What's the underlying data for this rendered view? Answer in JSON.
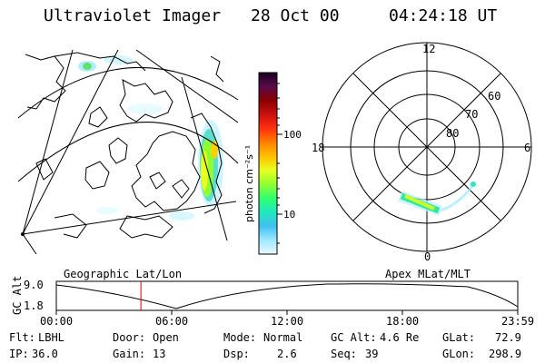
{
  "header": {
    "instrument": "Ultraviolet Imager",
    "date": "28 Oct 00",
    "time": "04:24:18 UT"
  },
  "colorbar": {
    "unit_label": "photon cm⁻²s⁻¹",
    "ticks": [
      "100",
      "10"
    ],
    "colors": [
      "#1a0020",
      "#5a0a4a",
      "#8a0000",
      "#cc1010",
      "#ff3010",
      "#ff8000",
      "#ffc000",
      "#e8ff20",
      "#90ff30",
      "#30ff70",
      "#20e8c0",
      "#40c0f0",
      "#a0e8ff",
      "#e8f8ff"
    ]
  },
  "polar_plot": {
    "mlt_labels": {
      "top": "12",
      "left": "18",
      "right": "6",
      "bottom": "0"
    },
    "lat_labels": [
      "60",
      "70",
      "80"
    ]
  },
  "map": {
    "label": "Geographic Lat/Lon"
  },
  "polar_caption": "Apex MLat/MLT",
  "timeline": {
    "axis_title": "GC Alt",
    "y_ticks": [
      "9.0",
      "1.8"
    ],
    "x_ticks": [
      "00:00",
      "06:00",
      "12:00",
      "18:00",
      "23:59"
    ],
    "current_marker_hours": 4.4
  },
  "status": {
    "filter_label": "Flt:",
    "filter_value": "LBHL",
    "ip_label": "IP:",
    "ip_value": "36.0",
    "door_label": "Door:",
    "door_value": "Open",
    "gain_label": "Gain:",
    "gain_value": "13",
    "mode_label": "Mode:",
    "mode_value": "Normal",
    "dsp_label": "Dsp:",
    "dsp_value": "2.6",
    "gcalt_label": "GC Alt:",
    "gcalt_value": "4.6 Re",
    "seq_label": "Seq:",
    "seq_value": "39",
    "glat_label": "GLat:",
    "glat_value": "72.9",
    "glon_label": "GLon:",
    "glon_value": "298.9"
  }
}
